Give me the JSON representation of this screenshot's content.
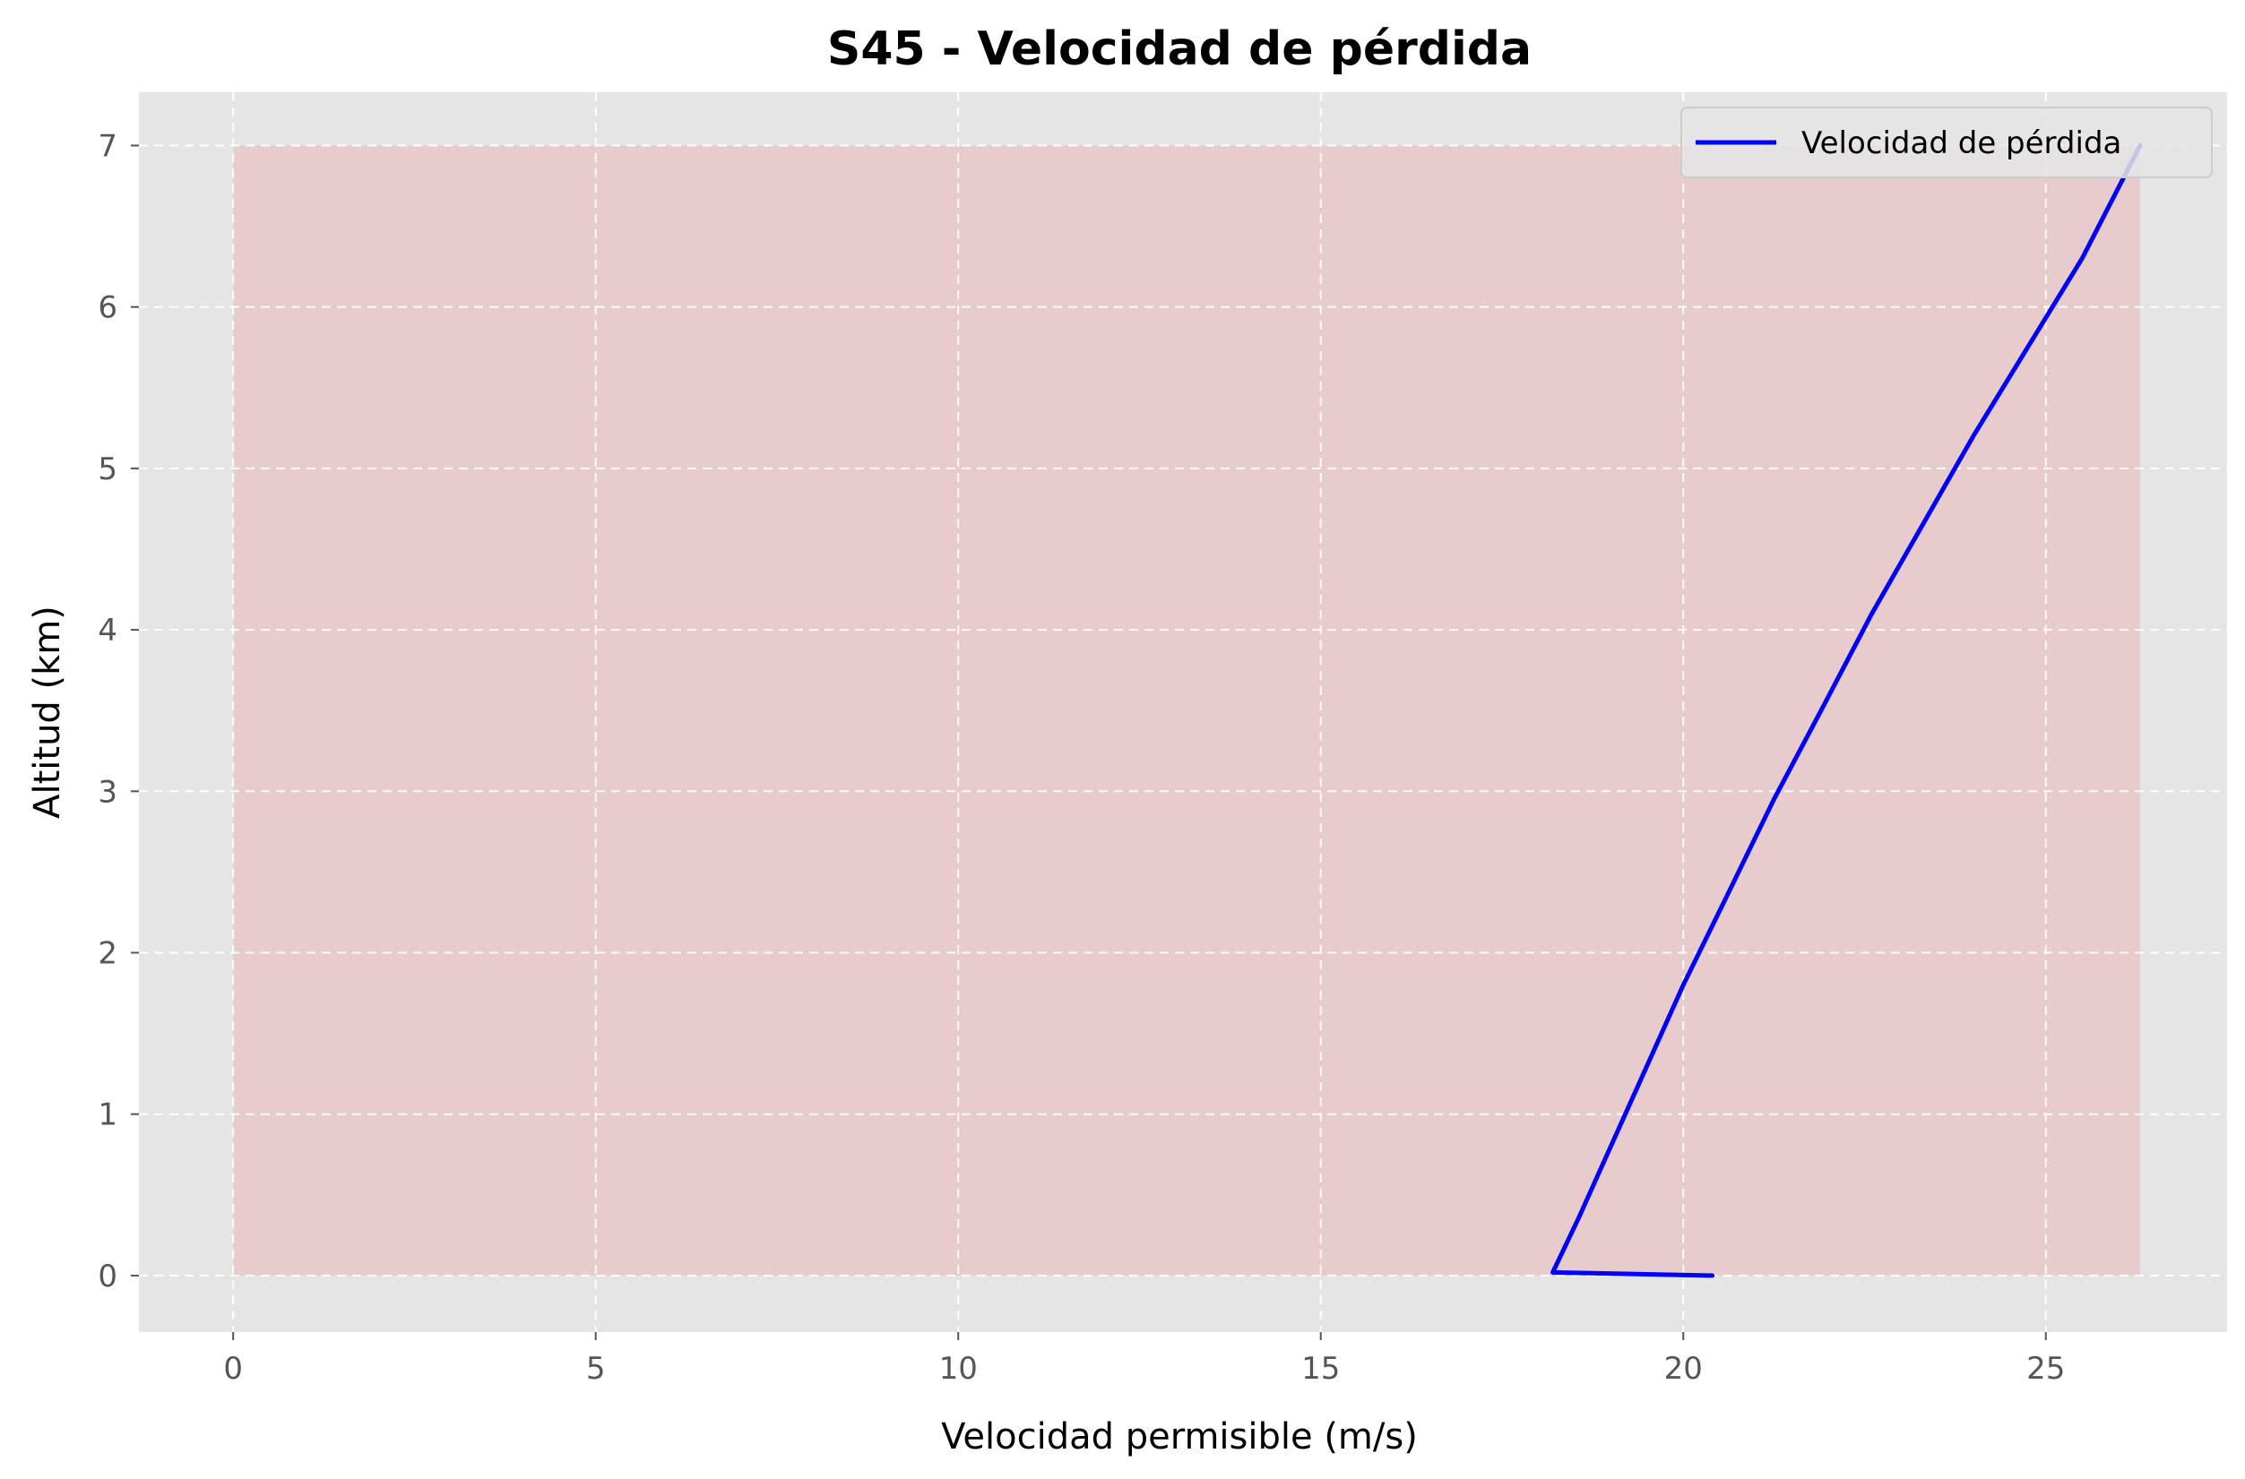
{
  "chart_data": {
    "type": "line",
    "title": "S45 - Velocidad de pérdida",
    "xlabel": "Velocidad permisible (m/s)",
    "ylabel": "Altitud (km)",
    "xlim": [
      -1.3,
      27.5
    ],
    "ylim": [
      -0.35,
      7.33
    ],
    "xticks": [
      0,
      5,
      10,
      15,
      20,
      25
    ],
    "yticks": [
      0,
      1,
      2,
      3,
      4,
      5,
      6,
      7
    ],
    "grid": true,
    "legend_position": "top-right",
    "series": [
      {
        "name": "Velocidad de pérdida",
        "color": "#0000ff",
        "x": [
          20.4,
          18.2,
          18.55,
          18.95,
          19.45,
          20.0,
          20.6,
          21.25,
          21.9,
          22.6,
          23.3,
          24.0,
          24.75,
          25.5,
          26.3
        ],
        "y": [
          0.0,
          0.02,
          0.35,
          0.75,
          1.25,
          1.8,
          2.35,
          2.95,
          3.5,
          4.1,
          4.65,
          5.2,
          5.75,
          6.3,
          7.0
        ]
      }
    ],
    "fill_region": {
      "color": "#e7cbcd",
      "x": [
        0,
        26.3
      ],
      "y": [
        0,
        7
      ]
    }
  },
  "colors": {
    "plot_background": "#e5e5e5",
    "grid": "#ffffff",
    "line": "#0000ff"
  }
}
